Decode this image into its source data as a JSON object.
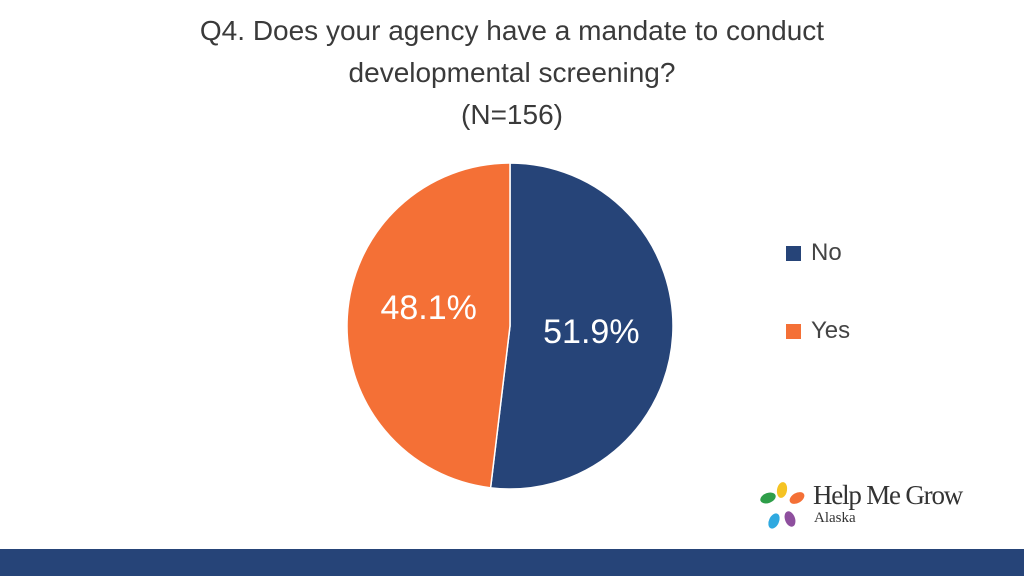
{
  "chart_data": {
    "type": "pie",
    "title_lines": [
      "Q4. Does your agency have a mandate to conduct",
      "developmental screening?",
      "(N=156)"
    ],
    "categories": [
      "No",
      "Yes"
    ],
    "values": [
      51.9,
      48.1
    ],
    "labels": [
      "51.9%",
      "48.1%"
    ],
    "colors": [
      "#264478",
      "#F47036"
    ],
    "label_color": "#ffffff",
    "legend_position": "right"
  },
  "logo": {
    "name": "Help Me Grow",
    "subtitle": "Alaska",
    "colors": [
      "#2E9E49",
      "#F5C323",
      "#F47036",
      "#2FA9E0",
      "#8E4F9E"
    ]
  },
  "footer": {
    "color": "#264478"
  }
}
